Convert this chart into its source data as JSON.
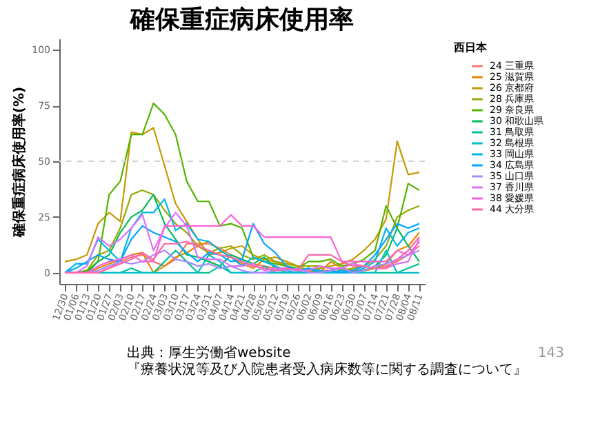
{
  "chart_data": {
    "type": "line",
    "title": "確保重症病床使用率",
    "ylabel": "確保重症病床使用率(%)",
    "legend_title": "西日本",
    "legend": "right",
    "grid": false,
    "ylim": [
      -5,
      105
    ],
    "yticks": [
      0,
      25,
      50,
      75,
      100
    ],
    "categories": [
      "12/30",
      "01/06",
      "01/13",
      "01/20",
      "01/27",
      "02/03",
      "02/10",
      "02/17",
      "02/24",
      "03/03",
      "03/10",
      "03/17",
      "03/24",
      "03/31",
      "04/07",
      "04/14",
      "04/21",
      "04/28",
      "05/05",
      "05/12",
      "05/19",
      "05/26",
      "06/02",
      "06/09",
      "06/16",
      "06/23",
      "06/30",
      "07/07",
      "07/14",
      "07/21",
      "07/28",
      "08/04",
      "08/11"
    ],
    "ref_lines": [
      {
        "axis": "y",
        "value": 50,
        "color": "#d3d3d3",
        "line_style": "dashed"
      }
    ],
    "annotations": [
      "出典：厚生労働省website",
      "『療養状況等及び入院患者受入病床数等に関する調査について』",
      "143"
    ],
    "series": [
      {
        "name": "24 三重県",
        "color": "#f8766d",
        "values": [
          0,
          0,
          0,
          0,
          2,
          5,
          7,
          8,
          5,
          3,
          6,
          13,
          13,
          13,
          11,
          8,
          6,
          4,
          3,
          2,
          2,
          2,
          1,
          1,
          1,
          2,
          1,
          1,
          2,
          3,
          5,
          8,
          12
        ]
      },
      {
        "name": "25 滋賀県",
        "color": "#e38900",
        "values": [
          0,
          0,
          0,
          2,
          4,
          6,
          8,
          9,
          0,
          3,
          7,
          9,
          12,
          14,
          10,
          7,
          4,
          2,
          6,
          5,
          3,
          1,
          1,
          0,
          5,
          2,
          1,
          1,
          2,
          4,
          10,
          12,
          18
        ]
      },
      {
        "name": "26 京都府",
        "color": "#c49a00",
        "values": [
          5,
          6,
          8,
          22,
          27,
          23,
          63,
          62,
          65,
          48,
          31,
          23,
          15,
          8,
          9,
          11,
          12,
          8,
          6,
          7,
          5,
          3,
          1,
          2,
          3,
          4,
          6,
          10,
          15,
          24,
          59,
          44,
          45
        ]
      },
      {
        "name": "28 兵庫県",
        "color": "#99a800",
        "values": [
          0,
          0,
          1,
          8,
          10,
          20,
          35,
          37,
          35,
          28,
          22,
          18,
          12,
          9,
          11,
          12,
          8,
          6,
          8,
          5,
          4,
          3,
          3,
          3,
          2,
          1,
          2,
          3,
          6,
          12,
          25,
          28,
          30
        ]
      },
      {
        "name": "29 奈良県",
        "color": "#53b400",
        "values": [
          0,
          0,
          1,
          5,
          35,
          41,
          62,
          62,
          76,
          71,
          62,
          41,
          32,
          32,
          21,
          22,
          20,
          7,
          5,
          4,
          3,
          2,
          5,
          5,
          6,
          3,
          4,
          6,
          10,
          30,
          20,
          40,
          37
        ]
      },
      {
        "name": "30 和歌山県",
        "color": "#00bc56",
        "values": [
          0,
          0,
          0,
          5,
          8,
          18,
          25,
          28,
          35,
          22,
          15,
          8,
          7,
          5,
          3,
          8,
          6,
          4,
          7,
          2,
          0,
          0,
          0,
          0,
          0,
          1,
          0,
          1,
          3,
          8,
          20,
          12,
          5
        ]
      },
      {
        "name": "31 鳥取県",
        "color": "#00c094",
        "values": [
          null,
          null,
          0,
          0,
          0,
          0,
          2,
          0,
          0,
          5,
          10,
          5,
          0,
          0,
          3,
          0,
          0,
          0,
          3,
          0,
          0,
          0,
          0,
          0,
          0,
          0,
          0,
          0,
          0,
          0,
          0,
          2,
          4
        ]
      },
      {
        "name": "32 島根県",
        "color": "#00bfc4",
        "values": [
          0,
          0,
          0,
          0,
          0,
          0,
          0,
          0,
          0,
          0,
          0,
          0,
          0,
          8,
          5,
          0,
          0,
          0,
          0,
          0,
          0,
          0,
          0,
          0,
          0,
          0,
          0,
          0,
          0,
          10,
          0,
          0,
          0
        ]
      },
      {
        "name": "33 岡山県",
        "color": "#00b6eb",
        "values": [
          0,
          4,
          4,
          15,
          10,
          5,
          20,
          27,
          27,
          33,
          19,
          22,
          15,
          14,
          10,
          7,
          3,
          7,
          5,
          3,
          1,
          0,
          2,
          1,
          0,
          1,
          0,
          2,
          5,
          20,
          12,
          18,
          20
        ]
      },
      {
        "name": "34 広島県",
        "color": "#06a4ff",
        "values": [
          0,
          2,
          5,
          8,
          6,
          5,
          15,
          21,
          18,
          16,
          14,
          9,
          5,
          9,
          8,
          5,
          6,
          22,
          13,
          9,
          3,
          1,
          2,
          0,
          1,
          0,
          1,
          3,
          8,
          15,
          22,
          20,
          22
        ]
      },
      {
        "name": "35 山口県",
        "color": "#a58aff",
        "values": [
          0,
          0,
          0,
          1,
          3,
          5,
          4,
          5,
          8,
          10,
          6,
          5,
          3,
          4,
          2,
          3,
          1,
          0,
          0,
          1,
          1,
          2,
          0,
          0,
          1,
          2,
          0,
          1,
          3,
          4,
          6,
          8,
          10
        ]
      },
      {
        "name": "37 香川県",
        "color": "#df70f8",
        "values": [
          0,
          0,
          3,
          16,
          12,
          15,
          20,
          26,
          10,
          20,
          27,
          21,
          7,
          6,
          6,
          3,
          3,
          4,
          1,
          2,
          2,
          1,
          1,
          3,
          2,
          2,
          4,
          3,
          2,
          2,
          4,
          5,
          15
        ]
      },
      {
        "name": "38 愛媛県",
        "color": "#fb61d7",
        "values": [
          0,
          0,
          0,
          3,
          5,
          6,
          8,
          5,
          5,
          21,
          21,
          21,
          21,
          21,
          21,
          26,
          21,
          21,
          16,
          16,
          16,
          16,
          16,
          16,
          16,
          5,
          5,
          5,
          5,
          5,
          10,
          8,
          14
        ]
      },
      {
        "name": "44 大分県",
        "color": "#ff66a8",
        "values": [
          0,
          0,
          0,
          0,
          2,
          4,
          6,
          9,
          6,
          13,
          13,
          14,
          12,
          10,
          8,
          7,
          5,
          3,
          2,
          1,
          2,
          1,
          8,
          8,
          8,
          5,
          3,
          3,
          2,
          2,
          6,
          10,
          16
        ]
      }
    ]
  }
}
